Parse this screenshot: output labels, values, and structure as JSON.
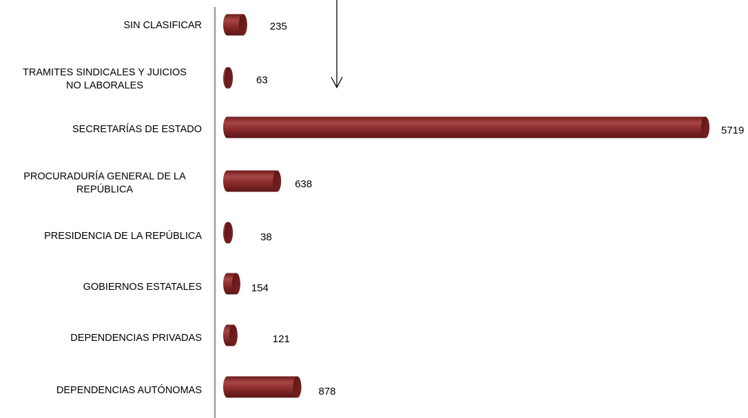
{
  "chart_data": {
    "type": "bar",
    "orientation": "horizontal",
    "categories": [
      [
        "SIN CLASIFICAR"
      ],
      [
        "TRAMITES SINDICALES Y JUICIOS",
        "NO LABORALES"
      ],
      [
        "SECRETARÍAS DE ESTADO"
      ],
      [
        "PROCURADURÍA GENERAL DE LA",
        "REPÚBLICA"
      ],
      [
        "PRESIDENCIA DE LA REPÚBLICA"
      ],
      [
        "GOBIERNOS ESTATALES"
      ],
      [
        "DEPENDENCIAS PRIVADAS"
      ],
      [
        "DEPENDENCIAS AUTÓNOMAS"
      ]
    ],
    "values": [
      235,
      63,
      5719,
      638,
      38,
      154,
      121,
      878
    ],
    "value_labels": [
      "235",
      "63",
      "5719",
      "638",
      "38",
      "154",
      "121",
      "878"
    ],
    "bar_shape": "cylinder",
    "bar_color": "#8b2a2a",
    "axis_color": "#a0a0a0",
    "grid": false,
    "legend": "none"
  }
}
